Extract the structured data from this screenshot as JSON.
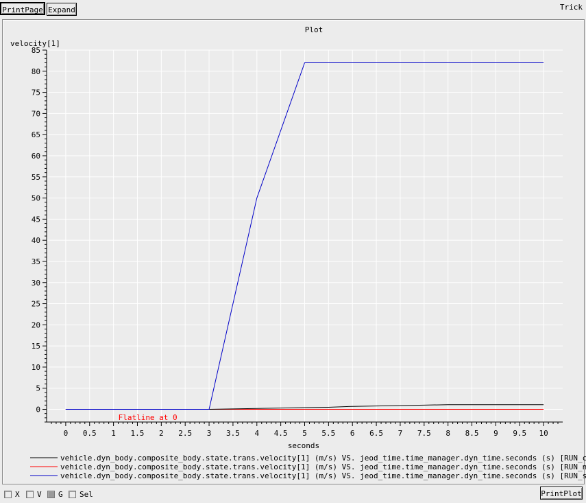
{
  "toolbar": {
    "print_page_label": "PrintPage",
    "expand_label": "Expand",
    "app_label": "Trick"
  },
  "bottom": {
    "checkboxes": [
      {
        "label": "X",
        "checked": false
      },
      {
        "label": "V",
        "checked": false
      },
      {
        "label": "G",
        "checked": true
      },
      {
        "label": "Sel",
        "checked": false
      }
    ],
    "print_plot_label": "PrintPlot"
  },
  "chart_data": {
    "type": "line",
    "title": "Plot",
    "xlabel": "seconds",
    "ylabel": "velocity[1]",
    "xlim": [
      -0.4,
      10.4
    ],
    "ylim": [
      -3,
      85
    ],
    "xticks": [
      0,
      0.5,
      1,
      1.5,
      2,
      2.5,
      3,
      3.5,
      4,
      4.5,
      5,
      5.5,
      6,
      6.5,
      7,
      7.5,
      8,
      8.5,
      9,
      9.5,
      10
    ],
    "yticks": [
      0,
      5,
      10,
      15,
      20,
      25,
      30,
      35,
      40,
      45,
      50,
      55,
      60,
      65,
      70,
      75,
      80,
      85
    ],
    "grid": true,
    "annotation": {
      "text": "Flatline at 0",
      "x": 1.1,
      "y": -1.5,
      "color": "#ff0000"
    },
    "series": [
      {
        "name": "vehicle.dyn_body.composite_body.state.trans.velocity[1] (m/s) VS. jeod_time.time_manager.dyn_time.seconds (s) [RUN_contact]",
        "color": "#000000",
        "x": [
          0,
          3,
          3.5,
          4,
          4.5,
          5,
          5.5,
          6,
          6.5,
          7,
          7.5,
          8,
          9,
          10
        ],
        "y": [
          0,
          0,
          0.1,
          0.2,
          0.3,
          0.4,
          0.5,
          0.7,
          0.8,
          0.9,
          1.0,
          1.1,
          1.1,
          1.1
        ]
      },
      {
        "name": "vehicle.dyn_body.composite_body.state.trans.velocity[1] (m/s) VS. jeod_time.time_manager.dyn_time.seconds (s) [RUN_no_contact]",
        "color": "#ff0000",
        "x": [
          0,
          10
        ],
        "y": [
          0,
          0
        ]
      },
      {
        "name": "vehicle.dyn_body.composite_body.state.trans.velocity[1] (m/s) VS. jeod_time.time_manager.dyn_time.seconds (s) [RUN_stiff]",
        "color": "#0000c8",
        "x": [
          0,
          3,
          4,
          5,
          10
        ],
        "y": [
          0,
          0,
          50,
          82,
          82
        ]
      }
    ]
  }
}
